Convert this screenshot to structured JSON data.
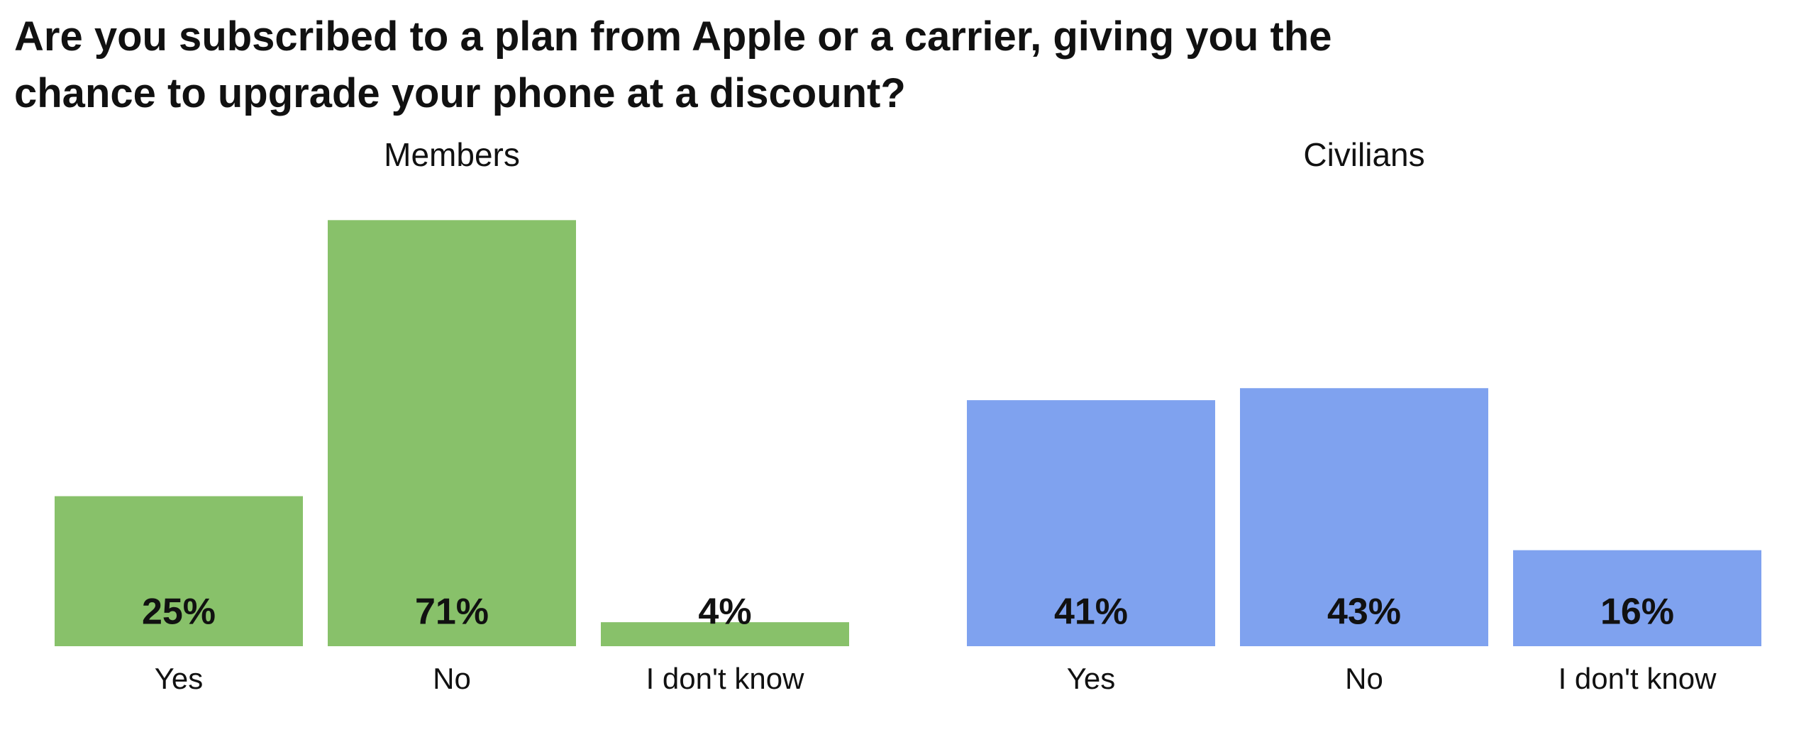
{
  "title": "Are you subscribed to a plan from Apple or a carrier, giving you the chance to upgrade your phone at a discount?",
  "chart_data": [
    {
      "type": "bar",
      "title": "Members",
      "categories": [
        "Yes",
        "No",
        "I don't know"
      ],
      "values": [
        25,
        71,
        4
      ],
      "value_labels": [
        "25%",
        "71%",
        "4%"
      ],
      "color": "#88c16a"
    },
    {
      "type": "bar",
      "title": "Civilians",
      "categories": [
        "Yes",
        "No",
        "I don't know"
      ],
      "values": [
        41,
        43,
        16
      ],
      "value_labels": [
        "41%",
        "43%",
        "16%"
      ],
      "color": "#7fa2ef"
    }
  ]
}
